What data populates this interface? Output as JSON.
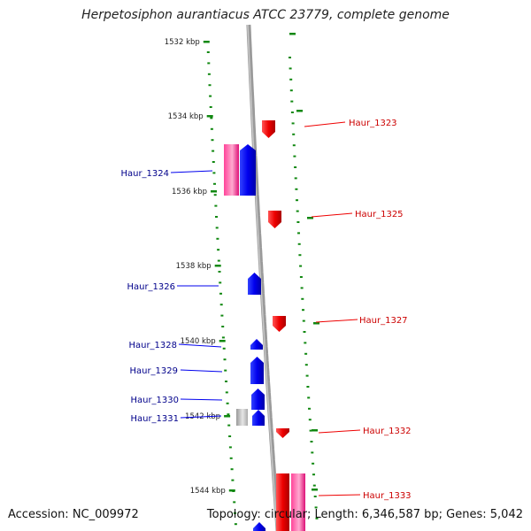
{
  "title": "Herpetosiphon aurantiacus ATCC 23779, complete genome",
  "accession": "Accession: NC_009972",
  "topology": "Topology: circular; Length: 6,346,587 bp; Genes: 5,042",
  "colors": {
    "backbone": "#8c8c8c",
    "tick": "#118811",
    "forward_gene": "#0000ee",
    "reverse_gene": "#ee0000",
    "forward_label": "#00008b",
    "reverse_label": "#cc0000",
    "highlight_gene": "#ee3399",
    "grey_gene": "#bbbbbb"
  },
  "scale_labels": [
    "1532 kbp",
    "1534 kbp",
    "1536 kbp",
    "1538 kbp",
    "1540 kbp",
    "1542 kbp",
    "1544 kbp"
  ],
  "genes": [
    {
      "label": "Haur_1323",
      "strand": "reverse"
    },
    {
      "label": "Haur_1324",
      "strand": "forward"
    },
    {
      "label": "Haur_1325",
      "strand": "reverse"
    },
    {
      "label": "Haur_1326",
      "strand": "forward"
    },
    {
      "label": "Haur_1327",
      "strand": "reverse"
    },
    {
      "label": "Haur_1328",
      "strand": "forward"
    },
    {
      "label": "Haur_1329",
      "strand": "forward"
    },
    {
      "label": "Haur_1330",
      "strand": "forward"
    },
    {
      "label": "Haur_1331",
      "strand": "forward"
    },
    {
      "label": "Haur_1332",
      "strand": "reverse"
    },
    {
      "label": "Haur_1333",
      "strand": "reverse"
    }
  ]
}
